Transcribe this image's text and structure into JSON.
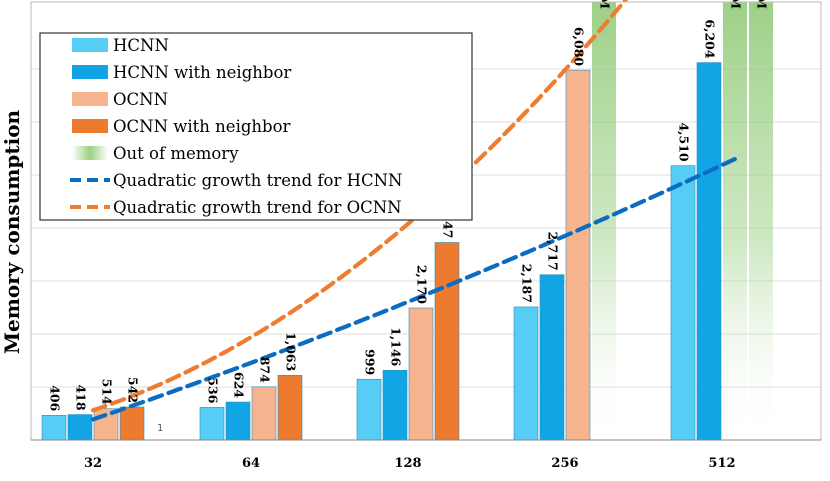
{
  "chart_data": {
    "type": "bar",
    "title": "",
    "xlabel": "",
    "ylabel": "Memory consumption",
    "categories": [
      "32",
      "64",
      "128",
      "256",
      "512"
    ],
    "ylim": [
      0,
      7200
    ],
    "grid": "horizontal",
    "legend_position": "top-left",
    "series": [
      {
        "name": "HCNN",
        "color": "#56cdf5",
        "values": [
          406,
          536,
          999,
          2187,
          4510
        ],
        "labels": [
          "406",
          "536",
          "999",
          "2,187",
          "4,510"
        ]
      },
      {
        "name": "HCNN with neighbor",
        "color": "#12a5e6",
        "values": [
          418,
          624,
          1146,
          2717,
          6204
        ],
        "labels": [
          "418",
          "624",
          "1,146",
          "2,717",
          "6,204"
        ]
      },
      {
        "name": "OCNN",
        "color": "#f5b48e",
        "values": [
          514,
          874,
          2170,
          6080,
          null
        ],
        "labels": [
          "514",
          "874",
          "2,170",
          "6,080",
          "OOM"
        ]
      },
      {
        "name": "OCNN with neighbor",
        "color": "#ec7a2f",
        "values": [
          542,
          1063,
          3247,
          null,
          null
        ],
        "labels": [
          "542",
          "1,063",
          "3,247",
          "OOM",
          "OOM"
        ]
      }
    ],
    "out_of_memory": {
      "name": "Out of memory",
      "color": "#8cc872",
      "label": "OOM"
    },
    "trends": [
      {
        "name": "Quadratic growth trend for HCNN",
        "color": "#0b6cc1"
      },
      {
        "name": "Quadratic growth trend for OCNN",
        "color": "#ee7d31"
      }
    ],
    "annotations": [
      "1"
    ]
  }
}
